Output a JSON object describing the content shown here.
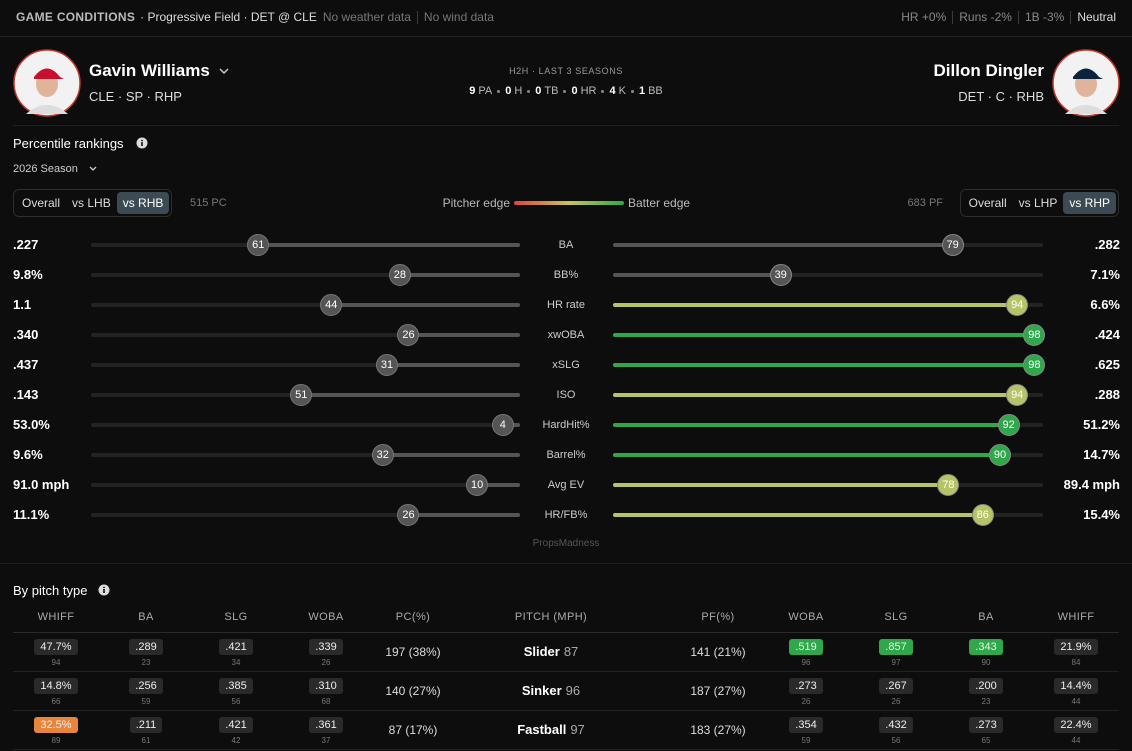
{
  "header": {
    "label": "GAME CONDITIONS",
    "venue": "· Progressive Field · DET @ CLE",
    "weather": "No weather data",
    "wind": "No wind data",
    "factors": [
      "HR +0%",
      "Runs -2%",
      "1B -3%"
    ],
    "status": "Neutral"
  },
  "pitcher": {
    "name": "Gavin Williams",
    "info": "CLE · SP · RHP"
  },
  "batter": {
    "name": "Dillon Dingler",
    "info": "DET · C · RHB"
  },
  "h2h": {
    "title": "H2H · LAST 3 SEASONS",
    "stats": [
      {
        "value": 9,
        "label": "PA"
      },
      {
        "value": 0,
        "label": "H"
      },
      {
        "value": 0,
        "label": "TB"
      },
      {
        "value": 0,
        "label": "HR"
      },
      {
        "value": 4,
        "label": "K"
      },
      {
        "value": 1,
        "label": "BB"
      }
    ]
  },
  "percentile": {
    "title": "Percentile rankings",
    "season": "2026 Season",
    "pitcher_tabs": [
      "Overall",
      "vs LHB",
      "vs RHB"
    ],
    "pitcher_tab_active": 2,
    "pitcher_count": "515 PC",
    "legend_left": "Pitcher edge",
    "legend_right": "Batter edge",
    "batter_count": "683 PF",
    "batter_tabs": [
      "Overall",
      "vs LHP",
      "vs RHP"
    ],
    "batter_tab_active": 2,
    "pitcher_color": "#555555",
    "rows": [
      {
        "stat": "BA",
        "pitcher_value": ".227",
        "pitcher_pct": 61,
        "batter_value": ".282",
        "batter_pct": 79,
        "batter_color": "#555555"
      },
      {
        "stat": "BB%",
        "pitcher_value": "9.8%",
        "pitcher_pct": 28,
        "batter_value": "7.1%",
        "batter_pct": 39,
        "batter_color": "#555555"
      },
      {
        "stat": "HR rate",
        "pitcher_value": "1.1",
        "pitcher_pct": 44,
        "batter_value": "6.6%",
        "batter_pct": 94,
        "batter_color": "#b6c467"
      },
      {
        "stat": "xwOBA",
        "pitcher_value": ".340",
        "pitcher_pct": 26,
        "batter_value": ".424",
        "batter_pct": 98,
        "batter_color": "#2ea84a"
      },
      {
        "stat": "xSLG",
        "pitcher_value": ".437",
        "pitcher_pct": 31,
        "batter_value": ".625",
        "batter_pct": 98,
        "batter_color": "#2ea84a"
      },
      {
        "stat": "ISO",
        "pitcher_value": ".143",
        "pitcher_pct": 51,
        "batter_value": ".288",
        "batter_pct": 94,
        "batter_color": "#b6c467"
      },
      {
        "stat": "HardHit%",
        "pitcher_value": "53.0%",
        "pitcher_pct": 4,
        "batter_value": "51.2%",
        "batter_pct": 92,
        "batter_color": "#2ea84a"
      },
      {
        "stat": "Barrel%",
        "pitcher_value": "9.6%",
        "pitcher_pct": 32,
        "batter_value": "14.7%",
        "batter_pct": 90,
        "batter_color": "#2ea84a"
      },
      {
        "stat": "Avg EV",
        "pitcher_value": "91.0 mph",
        "pitcher_pct": 10,
        "batter_value": "89.4 mph",
        "batter_pct": 78,
        "batter_color": "#b6c467"
      },
      {
        "stat": "HR/FB%",
        "pitcher_value": "11.1%",
        "pitcher_pct": 26,
        "batter_value": "15.4%",
        "batter_pct": 86,
        "batter_color": "#b6c467"
      }
    ],
    "watermark": "PropsMadness"
  },
  "pitch_type": {
    "title": "By pitch type",
    "headers": [
      "WHIFF",
      "BA",
      "SLG",
      "WOBA",
      "PC(%)",
      "PITCH (MPH)",
      "PF(%)",
      "WOBA",
      "SLG",
      "BA",
      "WHIFF"
    ],
    "rows": [
      {
        "pitcher": [
          {
            "value": "47.7%",
            "pct": 94
          },
          {
            "value": ".289",
            "pct": 23
          },
          {
            "value": ".421",
            "pct": 34
          },
          {
            "value": ".339",
            "pct": 26
          }
        ],
        "pc": "197 (38%)",
        "pitch": "Slider",
        "mph": 87,
        "pf": "141 (21%)",
        "batter": [
          {
            "value": ".519",
            "pct": 96,
            "color": "#2ea84a"
          },
          {
            "value": ".857",
            "pct": 97,
            "color": "#2ea84a"
          },
          {
            "value": ".343",
            "pct": 90,
            "color": "#2ea84a"
          },
          {
            "value": "21.9%",
            "pct": 84
          }
        ]
      },
      {
        "pitcher": [
          {
            "value": "14.8%",
            "pct": 66
          },
          {
            "value": ".256",
            "pct": 59
          },
          {
            "value": ".385",
            "pct": 56
          },
          {
            "value": ".310",
            "pct": 68
          }
        ],
        "pc": "140 (27%)",
        "pitch": "Sinker",
        "mph": 96,
        "pf": "187 (27%)",
        "batter": [
          {
            "value": ".273",
            "pct": 26
          },
          {
            "value": ".267",
            "pct": 26
          },
          {
            "value": ".200",
            "pct": 23
          },
          {
            "value": "14.4%",
            "pct": 44
          }
        ]
      },
      {
        "pitcher": [
          {
            "value": "32.5%",
            "pct": 89,
            "color": "#e8853c"
          },
          {
            "value": ".211",
            "pct": 61
          },
          {
            "value": ".421",
            "pct": 42
          },
          {
            "value": ".361",
            "pct": 37
          }
        ],
        "pc": "87 (17%)",
        "pitch": "Fastball",
        "mph": 97,
        "pf": "183 (27%)",
        "batter": [
          {
            "value": ".354",
            "pct": 59
          },
          {
            "value": ".432",
            "pct": 56
          },
          {
            "value": ".273",
            "pct": 65
          },
          {
            "value": "22.4%",
            "pct": 44
          }
        ]
      }
    ]
  }
}
